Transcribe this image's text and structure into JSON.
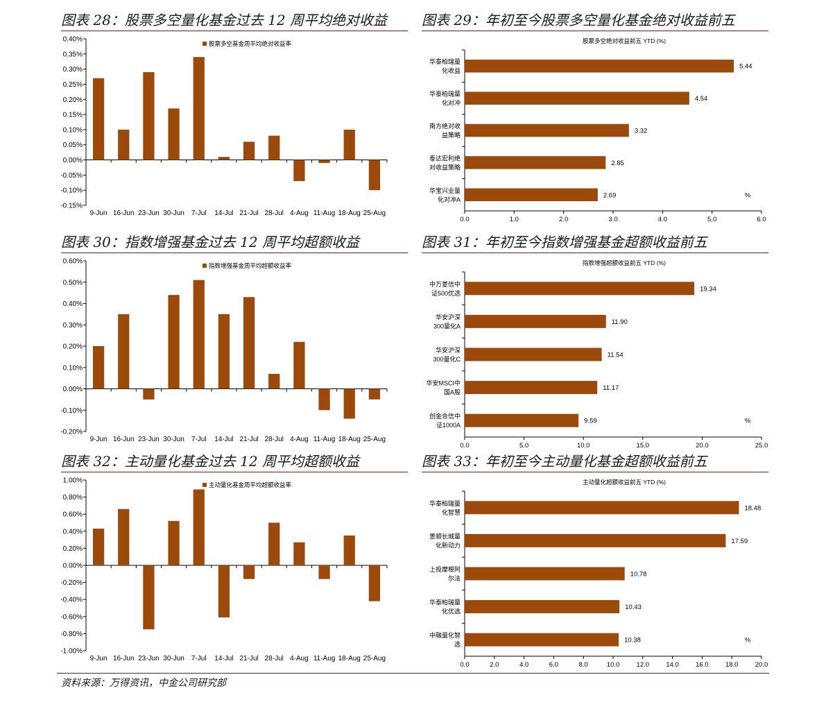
{
  "colors": {
    "bar": "#9c4a0c",
    "rule": "#8b1a1a"
  },
  "source": "资料来源：万得资讯，中金公司研究部",
  "charts": [
    {
      "title": "图表 28：股票多空量化基金过去 12 周平均绝对收益",
      "chart_data": {
        "type": "bar",
        "legend": "股票多空基金周平均绝对收益率",
        "categories": [
          "9-Jun",
          "16-Jun",
          "23-Jun",
          "30-Jun",
          "7-Jul",
          "14-Jul",
          "21-Jul",
          "28-Jul",
          "4-Aug",
          "11-Aug",
          "18-Aug",
          "25-Aug"
        ],
        "values": [
          0.27,
          0.1,
          0.29,
          0.17,
          0.34,
          0.01,
          0.06,
          0.08,
          -0.07,
          -0.01,
          0.1,
          -0.1
        ],
        "ylim": [
          -0.15,
          0.4
        ],
        "yticks": [
          "0.40%",
          "0.35%",
          "0.30%",
          "0.25%",
          "0.20%",
          "0.15%",
          "0.10%",
          "0.05%",
          "0.00%",
          "-0.05%",
          "-0.10%",
          "-0.15%"
        ]
      }
    },
    {
      "title": "图表 29：年初至今股票多空量化基金绝对收益前五",
      "chart_data": {
        "type": "bar",
        "orientation": "horizontal",
        "subtitle": "股票多空绝对收益前五 YTD (%)",
        "unit_label": "%",
        "categories": [
          [
            "华泰柏瑞量",
            "化收益"
          ],
          [
            "华泰柏瑞量",
            "化对冲"
          ],
          [
            "南方绝对收",
            "益策略"
          ],
          [
            "泰达宏利绝",
            "对收益策略"
          ],
          [
            "华宝兴业量",
            "化对冲A"
          ]
        ],
        "values": [
          5.44,
          4.54,
          3.32,
          2.85,
          2.69
        ],
        "value_labels": [
          "5.44",
          "4.54",
          "3.32",
          "2.85",
          "2.69"
        ],
        "xlim": [
          0,
          6
        ],
        "xticks": [
          "0.0",
          "1.0",
          "2.0",
          "3.0",
          "4.0",
          "5.0",
          "6.0"
        ]
      }
    },
    {
      "title": "图表 30：指数增强基金过去 12 周平均超额收益",
      "chart_data": {
        "type": "bar",
        "legend": "指数增强基金周平均超额收益率",
        "categories": [
          "9-Jun",
          "16-Jun",
          "23-Jun",
          "30-Jun",
          "7-Jul",
          "14-Jul",
          "21-Jul",
          "28-Jul",
          "4-Aug",
          "11-Aug",
          "18-Aug",
          "25-Aug"
        ],
        "values": [
          0.2,
          0.35,
          -0.05,
          0.44,
          0.51,
          0.35,
          0.43,
          0.07,
          0.22,
          -0.1,
          -0.14,
          -0.05
        ],
        "ylim": [
          -0.2,
          0.6
        ],
        "yticks": [
          "0.60%",
          "0.50%",
          "0.40%",
          "0.30%",
          "0.20%",
          "0.10%",
          "0.00%",
          "-0.10%",
          "-0.20%"
        ]
      }
    },
    {
      "title": "图表 31：年初至今指数增强基金超额收益前五",
      "chart_data": {
        "type": "bar",
        "orientation": "horizontal",
        "subtitle": "指数增强超额收益前五 YTD (%)",
        "unit_label": "%",
        "categories": [
          [
            "中万菱信中",
            "证500优选"
          ],
          [
            "华安沪深",
            "300量化A"
          ],
          [
            "华安沪深",
            "300量化C"
          ],
          [
            "华安MSCI中",
            "国A股"
          ],
          [
            "创金合信中",
            "证1000A"
          ]
        ],
        "values": [
          19.34,
          11.9,
          11.54,
          11.17,
          9.59
        ],
        "value_labels": [
          "19.34",
          "11.90",
          "11.54",
          "11.17",
          "9.59"
        ],
        "xlim": [
          0,
          25
        ],
        "xticks": [
          "0.0",
          "5.0",
          "10.0",
          "15.0",
          "20.0",
          "25.0"
        ]
      }
    },
    {
      "title": "图表 32：主动量化基金过去 12 周平均超额收益",
      "chart_data": {
        "type": "bar",
        "legend": "主动量化基金周平均超额收益率",
        "categories": [
          "9-Jun",
          "16-Jun",
          "23-Jun",
          "30-Jun",
          "7-Jul",
          "14-Jul",
          "21-Jul",
          "28-Jul",
          "4-Aug",
          "11-Aug",
          "18-Aug",
          "25-Aug"
        ],
        "values": [
          0.43,
          0.66,
          -0.75,
          0.52,
          0.89,
          -0.61,
          -0.16,
          0.5,
          0.27,
          -0.16,
          0.35,
          -0.42
        ],
        "ylim": [
          -1.0,
          1.0
        ],
        "yticks": [
          "1.00%",
          "0.80%",
          "0.60%",
          "0.40%",
          "0.20%",
          "0.00%",
          "-0.20%",
          "-0.40%",
          "-0.60%",
          "-0.80%",
          "-1.00%"
        ]
      }
    },
    {
      "title": "图表 33：年初至今主动量化基金超额收益前五",
      "chart_data": {
        "type": "bar",
        "orientation": "horizontal",
        "subtitle": "主动量化超额收益前五 YTD (%)",
        "unit_label": "%",
        "categories": [
          [
            "华泰柏瑞量",
            "化智慧"
          ],
          [
            "景顺长城量",
            "化新动力"
          ],
          [
            "上投摩根阿",
            "尔法"
          ],
          [
            "华泰柏瑞量",
            "化优选"
          ],
          [
            "中融量化智",
            "选"
          ]
        ],
        "values": [
          18.48,
          17.59,
          10.78,
          10.43,
          10.38
        ],
        "value_labels": [
          "18.48",
          "17.59",
          "10.78",
          "10.43",
          "10.38"
        ],
        "xlim": [
          0,
          20
        ],
        "xticks": [
          "0.0",
          "2.0",
          "4.0",
          "6.0",
          "8.0",
          "10.0",
          "12.0",
          "14.0",
          "16.0",
          "18.0",
          "20.0"
        ]
      }
    }
  ]
}
